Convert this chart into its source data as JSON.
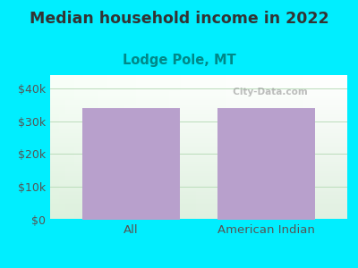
{
  "title": "Median household income in 2022",
  "subtitle": "Lodge Pole, MT",
  "categories": [
    "All",
    "American Indian"
  ],
  "values": [
    34000,
    34000
  ],
  "bar_color": "#B8A0CC",
  "title_fontsize": 12.5,
  "subtitle_fontsize": 10.5,
  "tick_fontsize": 9,
  "xlabel_fontsize": 9.5,
  "yticks": [
    0,
    10000,
    20000,
    30000,
    40000
  ],
  "ytick_labels": [
    "$0",
    "$10k",
    "$20k",
    "$30k",
    "$40k"
  ],
  "ylim": [
    0,
    44000
  ],
  "outer_bg": "#00EEFF",
  "title_color": "#333333",
  "subtitle_color": "#008888",
  "tick_color": "#555555",
  "grid_color": "#BBDDBB",
  "watermark_text": "City-Data.com",
  "bar_width": 0.72
}
